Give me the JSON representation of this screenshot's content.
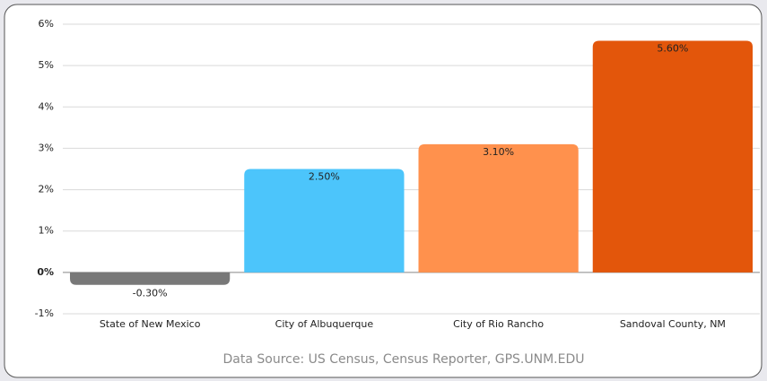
{
  "chart_data": {
    "type": "bar",
    "categories": [
      "State of New Mexico",
      "City of Albuquerque",
      "City of Rio Rancho",
      "Sandoval County, NM"
    ],
    "values": [
      -0.3,
      2.5,
      3.1,
      5.6
    ],
    "value_labels": [
      "-0.30%",
      "2.50%",
      "3.10%",
      "5.60%"
    ],
    "colors": [
      "#787878",
      "#4cc5fb",
      "#ff914d",
      "#e3560b"
    ],
    "ylim": [
      -1,
      6
    ],
    "yticks": [
      {
        "value": -1,
        "label": "-1%"
      },
      {
        "value": 0,
        "label": "0%"
      },
      {
        "value": 1,
        "label": "1%"
      },
      {
        "value": 2,
        "label": "2%"
      },
      {
        "value": 3,
        "label": "3%"
      },
      {
        "value": 4,
        "label": "4%"
      },
      {
        "value": 5,
        "label": "5%"
      },
      {
        "value": 6,
        "label": "6%"
      }
    ],
    "grid": true,
    "note": "Data Source: US Census, Census Reporter, GPS.UNM.EDU"
  }
}
